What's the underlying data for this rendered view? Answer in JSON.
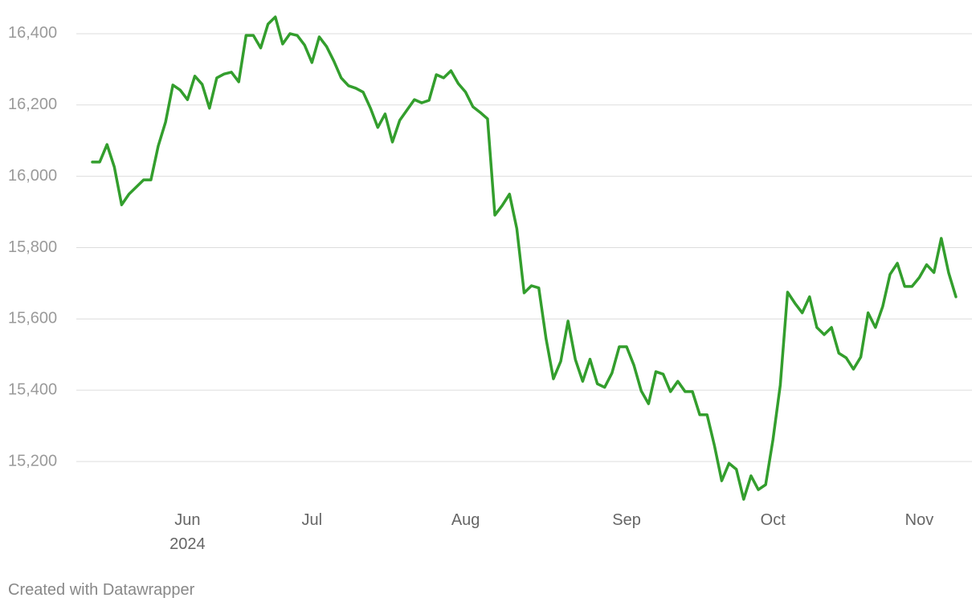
{
  "chart_data": {
    "type": "line",
    "categories": [
      null,
      null,
      null,
      null,
      null,
      null,
      null,
      null,
      null,
      null,
      null,
      null,
      null,
      "Jun 2024",
      null,
      null,
      null,
      null,
      null,
      null,
      null,
      null,
      null,
      null,
      null,
      null,
      null,
      null,
      null,
      null,
      "Jul",
      null,
      null,
      null,
      null,
      null,
      null,
      null,
      null,
      null,
      null,
      null,
      null,
      null,
      null,
      null,
      null,
      null,
      null,
      null,
      null,
      "Aug",
      null,
      null,
      null,
      null,
      null,
      null,
      null,
      null,
      null,
      null,
      null,
      null,
      null,
      null,
      null,
      null,
      null,
      null,
      null,
      null,
      null,
      "Sep",
      null,
      null,
      null,
      null,
      null,
      null,
      null,
      null,
      null,
      null,
      null,
      null,
      null,
      null,
      null,
      null,
      null,
      null,
      null,
      "Oct",
      null,
      null,
      null,
      null,
      null,
      null,
      null,
      null,
      null,
      null,
      null,
      null,
      null,
      null,
      null,
      null,
      null,
      null,
      null,
      "Nov",
      null,
      null,
      null,
      null,
      null
    ],
    "values": [
      16040,
      16040,
      16089,
      16026,
      15920,
      15950,
      15970,
      15990,
      15990,
      16085,
      16152,
      16256,
      16242,
      16215,
      16281,
      16258,
      16191,
      16276,
      16287,
      16292,
      16265,
      16395,
      16395,
      16360,
      16427,
      16447,
      16371,
      16400,
      16395,
      16368,
      16319,
      16391,
      16364,
      16323,
      16276,
      16254,
      16247,
      16236,
      16191,
      16137,
      16175,
      16096,
      16157,
      16186,
      16215,
      16206,
      16213,
      16285,
      16276,
      16296,
      16260,
      16236,
      16195,
      16179,
      16161,
      15891,
      15918,
      15950,
      15853,
      15673,
      15693,
      15687,
      15544,
      15432,
      15481,
      15594,
      15486,
      15425,
      15487,
      15418,
      15408,
      15448,
      15522,
      15522,
      15470,
      15398,
      15362,
      15452,
      15445,
      15396,
      15425,
      15396,
      15396,
      15331,
      15331,
      15245,
      15146,
      15195,
      15178,
      15094,
      15160,
      15121,
      15135,
      15261,
      15414,
      15675,
      15644,
      15617,
      15662,
      15576,
      15556,
      15576,
      15504,
      15491,
      15459,
      15493,
      15617,
      15576,
      15635,
      15725,
      15756,
      15691,
      15691,
      15716,
      15752,
      15730,
      15826,
      15730,
      15662
    ],
    "color": "#339e2d",
    "ylim": [
      15080,
      16460
    ],
    "yticks": [
      {
        "value": 15200,
        "label": "15,200"
      },
      {
        "value": 15400,
        "label": "15,400"
      },
      {
        "value": 15600,
        "label": "15,600"
      },
      {
        "value": 15800,
        "label": "15,800"
      },
      {
        "value": 16000,
        "label": "16,000"
      },
      {
        "value": 16200,
        "label": "16,200"
      },
      {
        "value": 16400,
        "label": "16,400"
      }
    ],
    "grid": true,
    "footer": "Created with Datawrapper"
  }
}
